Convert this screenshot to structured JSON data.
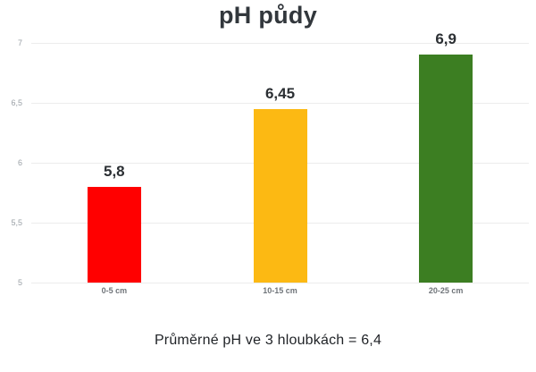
{
  "chart_data": {
    "type": "bar",
    "title": "pH půdy",
    "categories": [
      "0-5 cm",
      "10-15 cm",
      "20-25 cm"
    ],
    "values": [
      5.8,
      6.45,
      6.9
    ],
    "value_labels": [
      "5,8",
      "6,45",
      "6,9"
    ],
    "bar_colors": [
      "#ff0000",
      "#fcb913",
      "#3c7e22"
    ],
    "xlabel": "",
    "ylabel": "",
    "ylim": [
      5,
      7
    ],
    "yticks": [
      5,
      5.5,
      6,
      6.5,
      7
    ],
    "ytick_labels": [
      "5",
      "5,5",
      "6",
      "6,5",
      "7"
    ],
    "grid": true,
    "legend": false,
    "annotation": "Průměrné pH ve 3 hloubkách = 6,4"
  }
}
